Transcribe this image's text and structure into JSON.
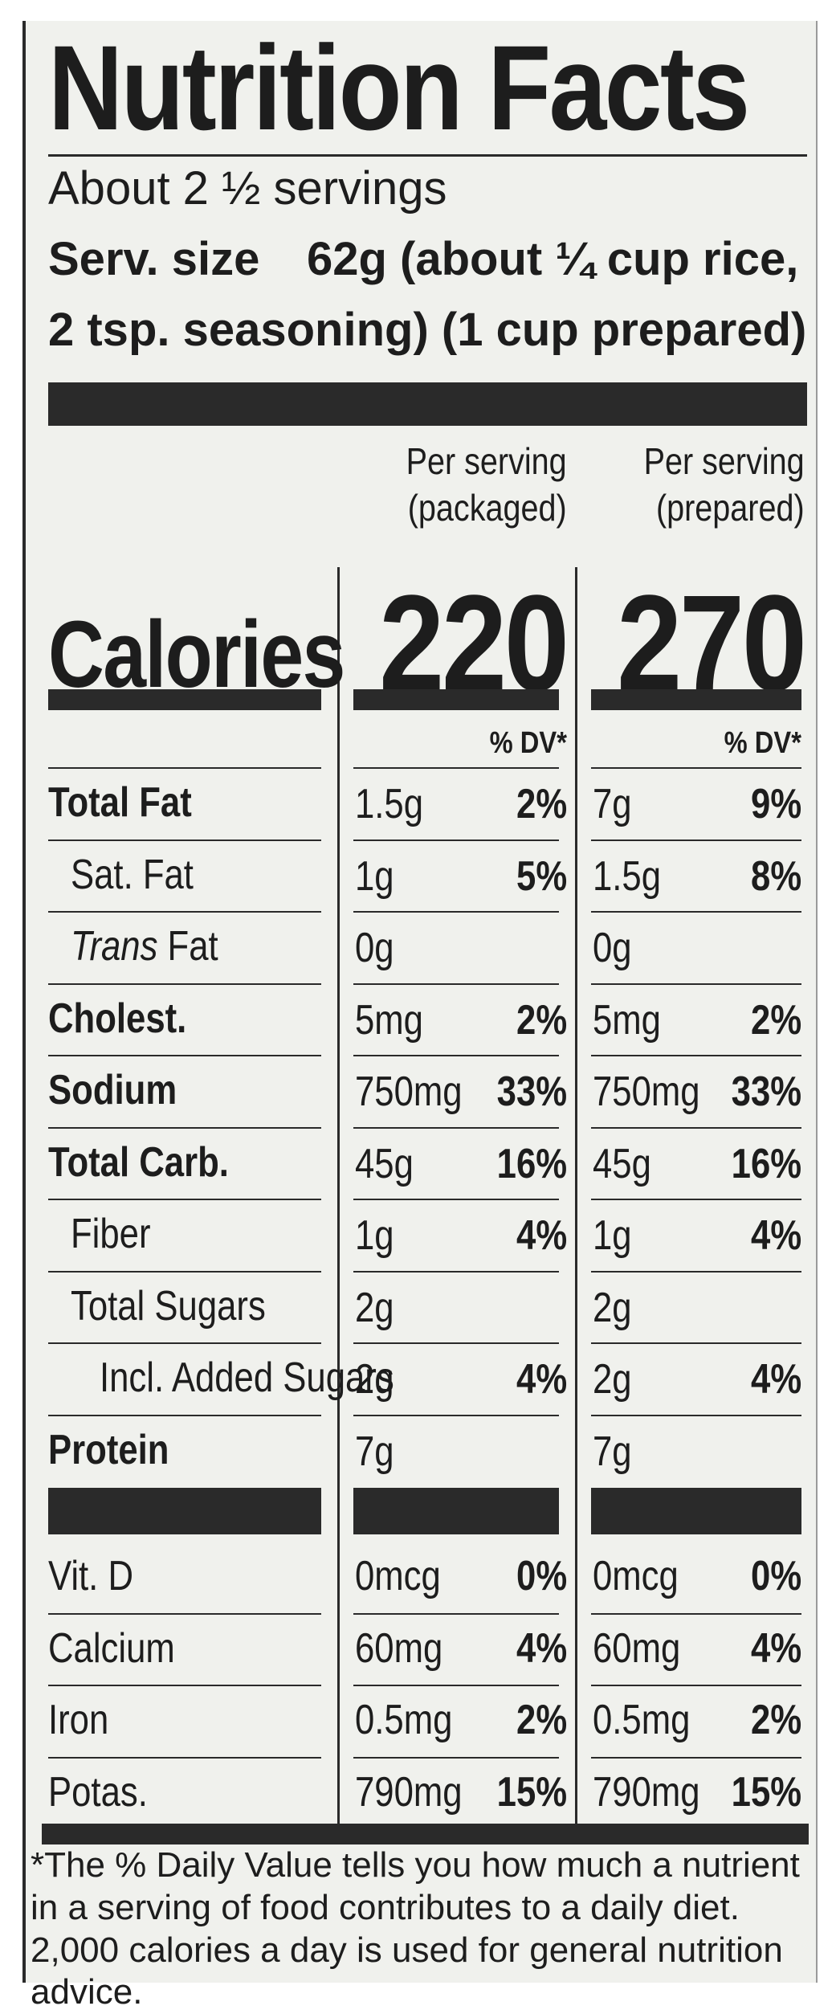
{
  "title": "Nutrition Facts",
  "servings": "About 2 ½ servings",
  "serving_size_label": "Serv. size",
  "serving_size_value": "62g (about ¼ cup rice,",
  "serving_size_value2": "2 tsp. seasoning) (1 cup prepared)",
  "col1_header_line1": "Per serving",
  "col1_header_line2": "(packaged)",
  "col2_header_line1": "Per serving",
  "col2_header_line2": "(prepared)",
  "calories_label": "Calories",
  "calories_packaged": "220",
  "calories_prepared": "270",
  "dv_header": "% DV*",
  "rows": [
    {
      "label": "Total Fat",
      "bold": true,
      "indent": 0,
      "p_amt": "1.5g",
      "p_dv": "2%",
      "r_amt": "7g",
      "r_dv": "9%"
    },
    {
      "label": "Sat. Fat",
      "bold": false,
      "indent": 1,
      "p_amt": "1g",
      "p_dv": "5%",
      "r_amt": "1.5g",
      "r_dv": "8%"
    },
    {
      "label_italic": "Trans",
      "label": " Fat",
      "bold": false,
      "indent": 1,
      "p_amt": "0g",
      "p_dv": "",
      "r_amt": "0g",
      "r_dv": ""
    },
    {
      "label": "Cholest.",
      "bold": true,
      "indent": 0,
      "p_amt": "5mg",
      "p_dv": "2%",
      "r_amt": "5mg",
      "r_dv": "2%"
    },
    {
      "label": "Sodium",
      "bold": true,
      "indent": 0,
      "p_amt": "750mg",
      "p_dv": "33%",
      "r_amt": "750mg",
      "r_dv": "33%"
    },
    {
      "label": "Total Carb.",
      "bold": true,
      "indent": 0,
      "p_amt": "45g",
      "p_dv": "16%",
      "r_amt": "45g",
      "r_dv": "16%"
    },
    {
      "label": "Fiber",
      "bold": false,
      "indent": 1,
      "p_amt": "1g",
      "p_dv": "4%",
      "r_amt": "1g",
      "r_dv": "4%"
    },
    {
      "label": "Total Sugars",
      "bold": false,
      "indent": 1,
      "p_amt": "2g",
      "p_dv": "",
      "r_amt": "2g",
      "r_dv": ""
    },
    {
      "label": "Incl. Added Sugars",
      "bold": false,
      "indent": 2,
      "p_amt": "2g",
      "p_dv": "4%",
      "r_amt": "2g",
      "r_dv": "4%"
    },
    {
      "label": "Protein",
      "bold": true,
      "indent": 0,
      "p_amt": "7g",
      "p_dv": "",
      "r_amt": "7g",
      "r_dv": ""
    }
  ],
  "vitamins": [
    {
      "label": "Vit. D",
      "p_amt": "0mcg",
      "p_dv": "0%",
      "r_amt": "0mcg",
      "r_dv": "0%"
    },
    {
      "label": "Calcium",
      "p_amt": "60mg",
      "p_dv": "4%",
      "r_amt": "60mg",
      "r_dv": "4%"
    },
    {
      "label": "Iron",
      "p_amt": "0.5mg",
      "p_dv": "2%",
      "r_amt": "0.5mg",
      "r_dv": "2%"
    },
    {
      "label": "Potas.",
      "p_amt": "790mg",
      "p_dv": "15%",
      "r_amt": "790mg",
      "r_dv": "15%"
    }
  ],
  "footnote": "*The % Daily Value tells you how much a nutrient in a serving of food contributes to a daily diet. 2,000 calories a day is used for general nutrition advice."
}
